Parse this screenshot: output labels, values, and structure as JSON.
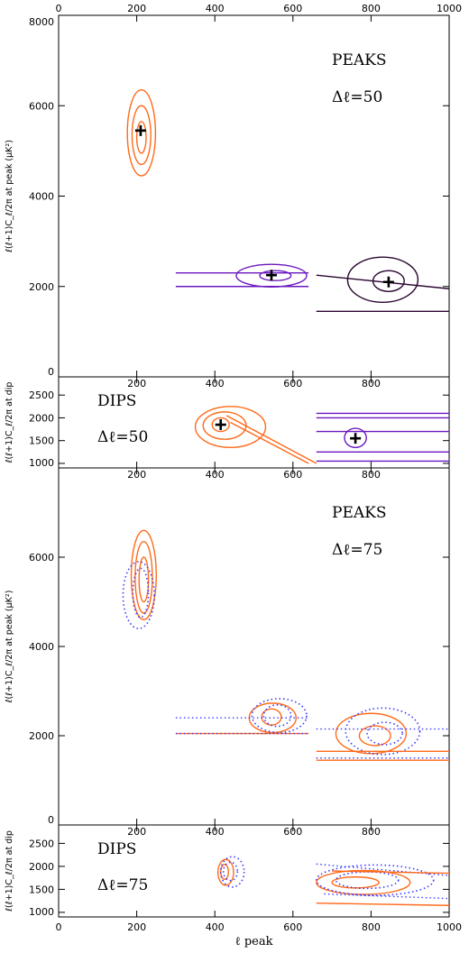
{
  "chart_data": [
    {
      "panel": "peaks_dl50",
      "type": "contour",
      "ylabel": "ℓ(ℓ+1)C_ℓ/2π at peak (μK²)",
      "xlim": [
        0,
        1000
      ],
      "ylim": [
        0,
        8000
      ],
      "x_ticks_top": [
        "0",
        "200",
        "400",
        "600",
        "800",
        "1000"
      ],
      "y_ticks": [
        "0",
        "2000",
        "4000",
        "6000",
        "8000"
      ],
      "annotations": [
        "PEAKS",
        "Δℓ=50"
      ],
      "colors": {
        "first": "#ff6a1a",
        "second": "#6a18c0",
        "third": "#2a0530"
      },
      "markers": [
        {
          "x": 210,
          "y": 5450
        },
        {
          "x": 545,
          "y": 2250
        },
        {
          "x": 845,
          "y": 2100
        }
      ],
      "contours": [
        {
          "series": "first",
          "rings": [
            {
              "cx": 212,
              "cy": 5300,
              "rx": 12,
              "ry": 350
            },
            {
              "cx": 212,
              "cy": 5350,
              "rx": 24,
              "ry": 650
            },
            {
              "cx": 212,
              "cy": 5400,
              "rx": 36,
              "ry": 950
            }
          ]
        },
        {
          "series": "second",
          "rings": [
            {
              "cx": 555,
              "cy": 2240,
              "rx": 40,
              "ry": 110
            },
            {
              "cx": 545,
              "cy": 2240,
              "rx": 90,
              "ry": 250
            }
          ]
        },
        {
          "series": "third",
          "rings": [
            {
              "cx": 845,
              "cy": 2120,
              "rx": 40,
              "ry": 230
            },
            {
              "cx": 830,
              "cy": 2150,
              "rx": 90,
              "ry": 500
            }
          ]
        }
      ]
    },
    {
      "panel": "dips_dl50",
      "type": "contour",
      "ylabel": "ℓ(ℓ+1)C_ℓ/2π at dip",
      "xlim": [
        0,
        1000
      ],
      "ylim": [
        900,
        2900
      ],
      "x_ticks_top": [
        "200",
        "400",
        "600",
        "800"
      ],
      "y_ticks": [
        "1000",
        "1500",
        "2000",
        "2500"
      ],
      "annotations": [
        "DIPS",
        "Δℓ=50"
      ],
      "markers": [
        {
          "x": 415,
          "y": 1850
        },
        {
          "x": 760,
          "y": 1550
        }
      ],
      "contours": [
        {
          "series": "first",
          "rings": [
            {
              "cx": 415,
              "cy": 1850,
              "rx": 22,
              "ry": 150
            },
            {
              "cx": 425,
              "cy": 1830,
              "rx": 55,
              "ry": 300
            },
            {
              "cx": 440,
              "cy": 1800,
              "rx": 90,
              "ry": 450
            }
          ]
        },
        {
          "series": "second",
          "rings": [
            {
              "cx": 760,
              "cy": 1560,
              "rx": 28,
              "ry": 210
            }
          ]
        }
      ]
    },
    {
      "panel": "peaks_dl75",
      "type": "contour",
      "ylabel": "ℓ(ℓ+1)C_ℓ/2π at peak (μK²)",
      "xlim": [
        0,
        1000
      ],
      "ylim": [
        0,
        8000
      ],
      "x_ticks_top": [
        "200",
        "400",
        "600",
        "800"
      ],
      "y_ticks": [
        "0",
        "2000",
        "4000",
        "6000"
      ],
      "annotations": [
        "PEAKS",
        "Δℓ=75"
      ],
      "contours": [
        {
          "series": "first",
          "rings": [
            {
              "cx": 218,
              "cy": 5500,
              "rx": 12,
              "ry": 500
            },
            {
              "cx": 218,
              "cy": 5550,
              "rx": 22,
              "ry": 800
            },
            {
              "cx": 218,
              "cy": 5600,
              "rx": 32,
              "ry": 1000
            }
          ]
        },
        {
          "series": "dotted",
          "rings": [
            {
              "cx": 210,
              "cy": 5200,
              "rx": 20,
              "ry": 550
            },
            {
              "cx": 205,
              "cy": 5150,
              "rx": 40,
              "ry": 750
            }
          ]
        },
        {
          "series": "first",
          "rings": [
            {
              "cx": 545,
              "cy": 2420,
              "rx": 25,
              "ry": 180
            },
            {
              "cx": 548,
              "cy": 2400,
              "rx": 60,
              "ry": 330
            }
          ]
        },
        {
          "series": "dotted",
          "rings": [
            {
              "cx": 560,
              "cy": 2450,
              "rx": 35,
              "ry": 240
            },
            {
              "cx": 565,
              "cy": 2450,
              "rx": 70,
              "ry": 380
            }
          ]
        },
        {
          "series": "first",
          "rings": [
            {
              "cx": 810,
              "cy": 2000,
              "rx": 40,
              "ry": 220
            },
            {
              "cx": 800,
              "cy": 2050,
              "rx": 90,
              "ry": 450
            }
          ]
        },
        {
          "series": "dotted",
          "rings": [
            {
              "cx": 835,
              "cy": 2050,
              "rx": 45,
              "ry": 250
            },
            {
              "cx": 830,
              "cy": 2100,
              "rx": 95,
              "ry": 520
            }
          ]
        }
      ]
    },
    {
      "panel": "dips_dl75",
      "type": "contour",
      "ylabel": "ℓ(ℓ+1)C_ℓ/2π at dip",
      "xlabel": "ℓ peak",
      "xlim": [
        0,
        1000
      ],
      "ylim": [
        900,
        2900
      ],
      "x_ticks_top": [
        "200",
        "400",
        "600",
        "800"
      ],
      "x_ticks_bottom": [
        "0",
        "200",
        "400",
        "600",
        "800",
        "1000"
      ],
      "y_ticks": [
        "1000",
        "1500",
        "2000",
        "2500"
      ],
      "annotations": [
        "DIPS",
        "Δℓ=75"
      ],
      "contours": [
        {
          "series": "first",
          "rings": [
            {
              "cx": 425,
              "cy": 1880,
              "rx": 10,
              "ry": 160
            },
            {
              "cx": 428,
              "cy": 1870,
              "rx": 20,
              "ry": 280
            }
          ]
        },
        {
          "series": "dotted",
          "rings": [
            {
              "cx": 440,
              "cy": 1890,
              "rx": 18,
              "ry": 200
            },
            {
              "cx": 445,
              "cy": 1880,
              "rx": 30,
              "ry": 330
            }
          ]
        },
        {
          "series": "first",
          "rings": [
            {
              "cx": 760,
              "cy": 1650,
              "rx": 60,
              "ry": 120
            },
            {
              "cx": 780,
              "cy": 1650,
              "rx": 120,
              "ry": 260
            }
          ]
        },
        {
          "series": "dotted",
          "rings": [
            {
              "cx": 790,
              "cy": 1700,
              "rx": 80,
              "ry": 180
            },
            {
              "cx": 810,
              "cy": 1700,
              "rx": 150,
              "ry": 330
            }
          ]
        }
      ]
    }
  ],
  "colors": {
    "orange": "#ff6a1a",
    "violet": "#6a18c0",
    "plum": "#2a0530",
    "blue_dotted": "#3a3aff"
  }
}
